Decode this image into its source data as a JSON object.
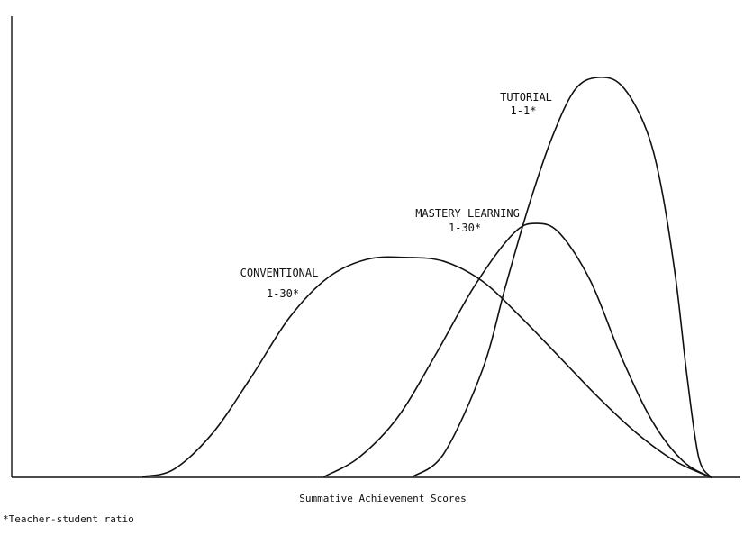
{
  "chart_data": {
    "type": "line",
    "title": "",
    "xlabel": "Summative Achievement Scores",
    "ylabel": "",
    "xlim": [
      0,
      100
    ],
    "ylim": [
      0,
      100
    ],
    "grid": false,
    "footnote": "*Teacher-student ratio",
    "series": [
      {
        "name": "CONVENTIONAL",
        "ratio": "1-30*",
        "x": [
          0,
          17,
          21,
          26,
          31,
          36,
          41,
          46,
          51,
          56,
          61,
          66,
          71,
          76,
          81,
          86,
          90.6
        ],
        "y": [
          0,
          0.2,
          2,
          11,
          25,
          40,
          50,
          54.5,
          55,
          54,
          49,
          40,
          30,
          20,
          11,
          4,
          0
        ]
      },
      {
        "name": "MASTERY LEARNING",
        "ratio": "1-30*",
        "x": [
          0,
          40.5,
          45,
          50,
          55,
          60,
          65,
          68,
          71,
          75,
          79,
          83,
          87,
          90.6
        ],
        "y": [
          0,
          0.2,
          5,
          15,
          31,
          48,
          61,
          63.5,
          61,
          49,
          30,
          14,
          4,
          0
        ]
      },
      {
        "name": "TUTORIAL",
        "ratio": "1-1*",
        "x": [
          0,
          52,
          56,
          61,
          64,
          67,
          70,
          73,
          76,
          79,
          82,
          84,
          86,
          87.5,
          89,
          90.6
        ],
        "y": [
          0,
          0.2,
          6,
          27,
          48,
          68,
          85,
          97,
          100,
          98,
          88,
          74,
          50,
          25,
          5,
          0
        ]
      }
    ]
  }
}
